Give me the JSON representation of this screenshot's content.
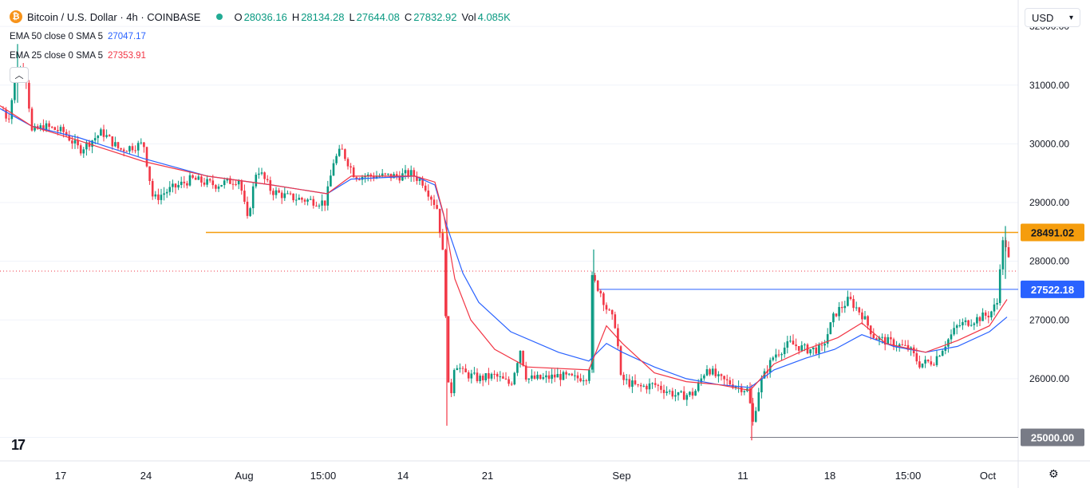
{
  "header": {
    "symbol_title": "Bitcoin / U.S. Dollar · 4h · COINBASE",
    "coin_glyph": "₿",
    "ohlc": [
      {
        "label": "O",
        "value": "28036.16"
      },
      {
        "label": "H",
        "value": "28134.28"
      },
      {
        "label": "L",
        "value": "27644.08"
      },
      {
        "label": "C",
        "value": "27832.92"
      },
      {
        "label": "Vol",
        "value": "4.085K"
      }
    ]
  },
  "indicators": [
    {
      "label": "EMA 50 close 0 SMA 5",
      "value": "27047.17",
      "color": "#2962ff"
    },
    {
      "label": "EMA 25 close 0 SMA 5",
      "value": "27353.91",
      "color": "#f23645"
    }
  ],
  "currency_selector": {
    "value": "USD"
  },
  "chart_data": {
    "type": "candlestick",
    "ylim": [
      24600,
      32450
    ],
    "y_ticks": [
      "25000.00",
      "26000.00",
      "27000.00",
      "28000.00",
      "29000.00",
      "30000.00",
      "31000.00",
      "32000.00"
    ],
    "x_ticks": [
      "17",
      "24",
      "Aug",
      "15:00",
      "14",
      "21",
      "Sep",
      "11",
      "18",
      "15:00",
      "Oct"
    ],
    "horizontal_levels": [
      {
        "value": 28491.02,
        "label": "28491.02",
        "color": "#f59d0d"
      },
      {
        "value": 27522.18,
        "label": "27522.18",
        "color": "#2962ff"
      },
      {
        "value": 25000.0,
        "label": "25000.00",
        "color": "#787b86"
      }
    ],
    "last_price": 27832.92,
    "colors": {
      "up": "#089981",
      "down": "#f23645",
      "ema50": "#2962ff",
      "ema25": "#f23645"
    },
    "price_path": [
      [
        0,
        30700
      ],
      [
        10,
        30400
      ],
      [
        22,
        31300
      ],
      [
        32,
        31200
      ],
      [
        40,
        30200
      ],
      [
        55,
        30300
      ],
      [
        80,
        30200
      ],
      [
        100,
        29900
      ],
      [
        128,
        30200
      ],
      [
        150,
        29900
      ],
      [
        180,
        30000
      ],
      [
        192,
        29050
      ],
      [
        210,
        29200
      ],
      [
        240,
        29400
      ],
      [
        270,
        29300
      ],
      [
        300,
        29400
      ],
      [
        310,
        28700
      ],
      [
        322,
        29600
      ],
      [
        340,
        29200
      ],
      [
        360,
        29100
      ],
      [
        380,
        29050
      ],
      [
        408,
        29000
      ],
      [
        418,
        29700
      ],
      [
        428,
        29900
      ],
      [
        445,
        29450
      ],
      [
        470,
        29450
      ],
      [
        500,
        29450
      ],
      [
        514,
        29500
      ],
      [
        530,
        29350
      ],
      [
        548,
        28900
      ],
      [
        556,
        28000
      ],
      [
        563,
        25500
      ],
      [
        570,
        26300
      ],
      [
        580,
        26100
      ],
      [
        600,
        26000
      ],
      [
        620,
        26050
      ],
      [
        640,
        25900
      ],
      [
        652,
        26500
      ],
      [
        660,
        26000
      ],
      [
        680,
        26000
      ],
      [
        700,
        26050
      ],
      [
        720,
        26000
      ],
      [
        738,
        26050
      ],
      [
        742,
        27700
      ],
      [
        752,
        27500
      ],
      [
        760,
        27200
      ],
      [
        772,
        26900
      ],
      [
        778,
        26000
      ],
      [
        800,
        25850
      ],
      [
        820,
        25900
      ],
      [
        850,
        25700
      ],
      [
        870,
        25750
      ],
      [
        886,
        26200
      ],
      [
        900,
        26000
      ],
      [
        920,
        25900
      ],
      [
        938,
        25800
      ],
      [
        943,
        25200
      ],
      [
        952,
        25900
      ],
      [
        970,
        26400
      ],
      [
        990,
        26600
      ],
      [
        1010,
        26500
      ],
      [
        1030,
        26500
      ],
      [
        1046,
        27100
      ],
      [
        1064,
        27350
      ],
      [
        1080,
        27100
      ],
      [
        1096,
        26700
      ],
      [
        1120,
        26600
      ],
      [
        1140,
        26500
      ],
      [
        1152,
        26250
      ],
      [
        1170,
        26300
      ],
      [
        1185,
        26600
      ],
      [
        1200,
        26900
      ],
      [
        1220,
        27000
      ],
      [
        1240,
        27100
      ],
      [
        1250,
        27300
      ],
      [
        1254,
        28100
      ],
      [
        1258,
        28400
      ],
      [
        1262,
        28200
      ],
      [
        1266,
        27850
      ]
    ],
    "ema50_path": [
      [
        0,
        30600
      ],
      [
        40,
        30300
      ],
      [
        100,
        30100
      ],
      [
        180,
        29750
      ],
      [
        260,
        29450
      ],
      [
        340,
        29300
      ],
      [
        410,
        29150
      ],
      [
        440,
        29400
      ],
      [
        520,
        29450
      ],
      [
        545,
        29300
      ],
      [
        560,
        28600
      ],
      [
        580,
        27800
      ],
      [
        600,
        27300
      ],
      [
        640,
        26800
      ],
      [
        700,
        26450
      ],
      [
        738,
        26300
      ],
      [
        760,
        26600
      ],
      [
        780,
        26450
      ],
      [
        820,
        26200
      ],
      [
        860,
        26000
      ],
      [
        900,
        25900
      ],
      [
        940,
        25850
      ],
      [
        970,
        26150
      ],
      [
        1010,
        26350
      ],
      [
        1046,
        26500
      ],
      [
        1080,
        26750
      ],
      [
        1120,
        26550
      ],
      [
        1160,
        26450
      ],
      [
        1200,
        26550
      ],
      [
        1240,
        26800
      ],
      [
        1262,
        27050
      ]
    ],
    "ema25_path": [
      [
        0,
        30650
      ],
      [
        40,
        30300
      ],
      [
        100,
        30050
      ],
      [
        180,
        29700
      ],
      [
        260,
        29450
      ],
      [
        340,
        29300
      ],
      [
        410,
        29150
      ],
      [
        440,
        29450
      ],
      [
        520,
        29450
      ],
      [
        545,
        29350
      ],
      [
        556,
        28800
      ],
      [
        570,
        27700
      ],
      [
        590,
        27000
      ],
      [
        620,
        26500
      ],
      [
        660,
        26200
      ],
      [
        738,
        26150
      ],
      [
        760,
        26900
      ],
      [
        780,
        26600
      ],
      [
        820,
        26100
      ],
      [
        860,
        25950
      ],
      [
        900,
        25900
      ],
      [
        940,
        25800
      ],
      [
        970,
        26250
      ],
      [
        1010,
        26500
      ],
      [
        1050,
        26700
      ],
      [
        1080,
        26950
      ],
      [
        1110,
        26600
      ],
      [
        1160,
        26450
      ],
      [
        1200,
        26650
      ],
      [
        1240,
        26900
      ],
      [
        1262,
        27350
      ]
    ]
  }
}
